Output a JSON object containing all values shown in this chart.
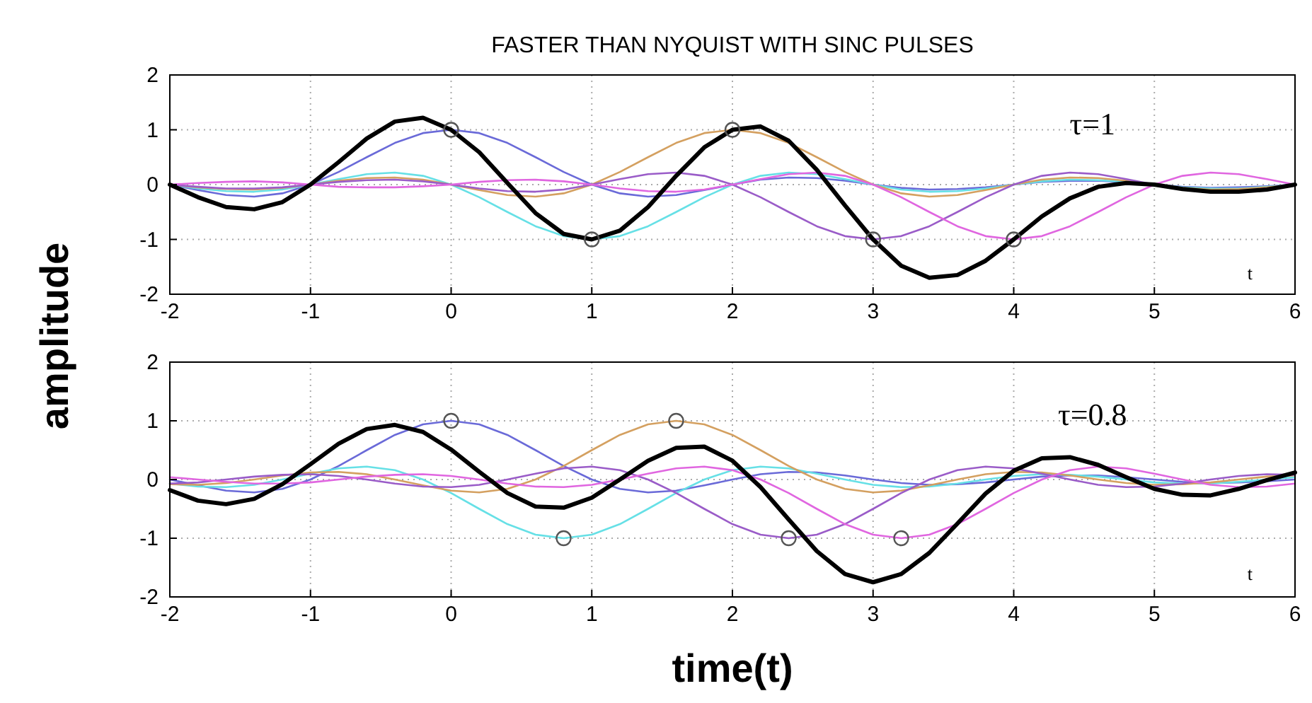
{
  "chart_data": [
    {
      "type": "line",
      "title": "FASTER THAN NYQUIST WITH SINC PULSES",
      "ylabel": "amplitude",
      "annotations": [
        "τ=1",
        "t"
      ],
      "x": [
        -2,
        -1.8,
        -1.6,
        -1.4,
        -1.2,
        -1,
        -0.8,
        -0.6,
        -0.4,
        -0.2,
        0,
        0.2,
        0.4,
        0.6,
        0.8,
        1,
        1.2,
        1.4,
        1.6,
        1.8,
        2,
        2.2,
        2.4,
        2.6,
        2.8,
        3,
        3.2,
        3.4,
        3.6,
        3.8,
        4,
        4.2,
        4.4,
        4.6,
        4.8,
        5,
        5.2,
        5.4,
        5.6,
        5.8,
        6
      ],
      "xlim": [
        -2,
        6
      ],
      "xticks": [
        -2,
        -1,
        0,
        1,
        2,
        3,
        4,
        5,
        6
      ],
      "ylim": [
        -2,
        2
      ],
      "yticks": [
        -2,
        -1,
        0,
        1,
        2
      ],
      "grid": true,
      "line_style": "solid",
      "series": [
        {
          "color": "#6a6ad8",
          "values": [
            0,
            -0.1,
            -0.19,
            -0.22,
            -0.16,
            0,
            0.23,
            0.5,
            0.76,
            0.94,
            1,
            0.94,
            0.76,
            0.5,
            0.23,
            0,
            -0.16,
            -0.22,
            -0.19,
            -0.1,
            0,
            0.09,
            0.13,
            0.12,
            0.07,
            0,
            -0.06,
            -0.09,
            -0.08,
            -0.05,
            0,
            0.05,
            0.07,
            0.07,
            0.04,
            0,
            -0.04,
            -0.06,
            -0.05,
            -0.03,
            0
          ]
        },
        {
          "color": "#66e0e6",
          "values": [
            0,
            -0.07,
            -0.12,
            -0.13,
            -0.09,
            0,
            0.1,
            0.19,
            0.22,
            0.16,
            0,
            -0.23,
            -0.5,
            -0.76,
            -0.94,
            -1,
            -0.94,
            -0.76,
            -0.5,
            -0.23,
            0,
            0.16,
            0.22,
            0.19,
            0.1,
            0,
            -0.09,
            -0.13,
            -0.12,
            -0.07,
            0,
            0.06,
            0.09,
            0.08,
            0.05,
            0,
            -0.05,
            -0.07,
            -0.07,
            -0.04,
            0
          ]
        },
        {
          "color": "#d4a060",
          "values": [
            0,
            -0.05,
            -0.08,
            -0.09,
            -0.06,
            0,
            0.07,
            0.12,
            0.13,
            0.09,
            0,
            -0.1,
            -0.19,
            -0.22,
            -0.16,
            0,
            0.23,
            0.5,
            0.76,
            0.94,
            1,
            0.94,
            0.76,
            0.5,
            0.23,
            0,
            -0.16,
            -0.22,
            -0.19,
            -0.1,
            0,
            0.09,
            0.13,
            0.12,
            0.07,
            0,
            -0.06,
            -0.09,
            -0.08,
            -0.05,
            0
          ]
        },
        {
          "color": "#9a5cc8",
          "values": [
            0,
            -0.04,
            -0.07,
            -0.07,
            -0.05,
            0,
            0.05,
            0.08,
            0.09,
            0.06,
            0,
            -0.07,
            -0.12,
            -0.13,
            -0.09,
            0,
            0.1,
            0.19,
            0.22,
            0.16,
            0,
            -0.23,
            -0.5,
            -0.76,
            -0.94,
            -1,
            -0.94,
            -0.76,
            -0.5,
            -0.23,
            0,
            0.16,
            0.22,
            0.19,
            0.1,
            0,
            -0.09,
            -0.13,
            -0.12,
            -0.07,
            0
          ]
        },
        {
          "color": "#e066e0",
          "values": [
            0,
            0.03,
            0.05,
            0.06,
            0.04,
            0,
            -0.04,
            -0.05,
            -0.05,
            -0.03,
            0,
            0.05,
            0.08,
            0.09,
            0.06,
            0,
            -0.07,
            -0.12,
            -0.13,
            -0.09,
            0,
            0.1,
            0.19,
            0.22,
            0.16,
            0,
            -0.23,
            -0.5,
            -0.76,
            -0.94,
            -1,
            -0.94,
            -0.76,
            -0.5,
            -0.23,
            0,
            0.16,
            0.22,
            0.19,
            0.1,
            0
          ]
        },
        {
          "color": "#000000",
          "values": [
            0,
            -0.23,
            -0.41,
            -0.45,
            -0.32,
            0,
            0.41,
            0.84,
            1.15,
            1.22,
            1,
            0.59,
            0.03,
            -0.52,
            -0.9,
            -1,
            -0.84,
            -0.41,
            0.16,
            0.68,
            1,
            1.06,
            0.8,
            0.27,
            -0.38,
            -1,
            -1.48,
            -1.7,
            -1.65,
            -1.39,
            -1,
            -0.58,
            -0.25,
            -0.04,
            0.03,
            0,
            -0.08,
            -0.13,
            -0.13,
            -0.09,
            0
          ]
        },
        {
          "type": "scatter",
          "marker": "circle",
          "color": "#555555",
          "x": [
            0,
            1,
            2,
            3,
            4
          ],
          "values": [
            1,
            -1,
            1,
            -1,
            -1
          ]
        }
      ]
    },
    {
      "type": "line",
      "xlabel": "time(t)",
      "annotations": [
        "τ=0.8",
        "t"
      ],
      "x": [
        -2,
        -1.8,
        -1.6,
        -1.4,
        -1.2,
        -1,
        -0.8,
        -0.6,
        -0.4,
        -0.2,
        0,
        0.2,
        0.4,
        0.6,
        0.8,
        1,
        1.2,
        1.4,
        1.6,
        1.8,
        2,
        2.2,
        2.4,
        2.6,
        2.8,
        3,
        3.2,
        3.4,
        3.6,
        3.8,
        4,
        4.2,
        4.4,
        4.6,
        4.8,
        5,
        5.2,
        5.4,
        5.6,
        5.8,
        6
      ],
      "xlim": [
        -2,
        6
      ],
      "xticks": [
        -2,
        -1,
        0,
        1,
        2,
        3,
        4,
        5,
        6
      ],
      "ylim": [
        -2,
        2
      ],
      "yticks": [
        -2,
        -1,
        0,
        1,
        2
      ],
      "grid": true,
      "line_style": "solid",
      "series": [
        {
          "color": "#6a6ad8",
          "values": [
            0,
            -0.1,
            -0.19,
            -0.22,
            -0.16,
            0,
            0.23,
            0.5,
            0.76,
            0.94,
            1,
            0.94,
            0.76,
            0.5,
            0.23,
            0,
            -0.16,
            -0.22,
            -0.19,
            -0.1,
            0,
            0.09,
            0.13,
            0.12,
            0.07,
            0,
            -0.06,
            -0.09,
            -0.08,
            -0.05,
            0,
            0.05,
            0.07,
            0.07,
            0.04,
            0,
            -0.04,
            -0.06,
            -0.05,
            -0.03,
            0
          ]
        },
        {
          "color": "#66e0e6",
          "values": [
            -0.07,
            -0.12,
            -0.13,
            -0.09,
            0,
            0.1,
            0.19,
            0.22,
            0.16,
            0,
            -0.23,
            -0.5,
            -0.76,
            -0.94,
            -1,
            -0.94,
            -0.76,
            -0.5,
            -0.23,
            0,
            0.16,
            0.22,
            0.19,
            0.1,
            0,
            -0.09,
            -0.13,
            -0.12,
            -0.07,
            0,
            0.06,
            0.09,
            0.08,
            0.05,
            0,
            -0.05,
            -0.07,
            -0.07,
            -0.04,
            0,
            0.04
          ]
        },
        {
          "color": "#d4a060",
          "values": [
            -0.08,
            -0.09,
            -0.06,
            0,
            0.07,
            0.12,
            0.13,
            0.09,
            0,
            -0.1,
            -0.19,
            -0.22,
            -0.16,
            0,
            0.23,
            0.5,
            0.76,
            0.94,
            1,
            0.94,
            0.76,
            0.5,
            0.23,
            0,
            -0.16,
            -0.22,
            -0.19,
            -0.1,
            0,
            0.09,
            0.13,
            0.12,
            0.07,
            0,
            -0.06,
            -0.09,
            -0.08,
            -0.05,
            0,
            0.05,
            0.07
          ]
        },
        {
          "color": "#9a5cc8",
          "values": [
            -0.07,
            -0.05,
            0,
            0.05,
            0.08,
            0.09,
            0.06,
            0,
            -0.07,
            -0.12,
            -0.13,
            -0.09,
            0,
            0.1,
            0.19,
            0.22,
            0.16,
            0,
            -0.23,
            -0.5,
            -0.76,
            -0.94,
            -1,
            -0.94,
            -0.76,
            -0.5,
            -0.23,
            0,
            0.16,
            0.22,
            0.19,
            0.1,
            0,
            -0.09,
            -0.13,
            -0.12,
            -0.07,
            0,
            0.06,
            0.09,
            0.08
          ]
        },
        {
          "color": "#e066e0",
          "values": [
            0.04,
            0,
            -0.04,
            -0.07,
            -0.07,
            -0.05,
            0,
            0.05,
            0.08,
            0.09,
            0.06,
            0,
            -0.07,
            -0.12,
            -0.13,
            -0.09,
            0,
            0.1,
            0.19,
            0.22,
            0.16,
            0,
            -0.23,
            -0.5,
            -0.76,
            -0.94,
            -1,
            -0.94,
            -0.76,
            -0.5,
            -0.23,
            0,
            0.16,
            0.22,
            0.19,
            0.1,
            0,
            -0.09,
            -0.13,
            -0.12,
            -0.07
          ]
        },
        {
          "color": "#000000",
          "values": [
            -0.18,
            -0.36,
            -0.42,
            -0.33,
            -0.08,
            0.26,
            0.61,
            0.86,
            0.93,
            0.81,
            0.51,
            0.13,
            -0.23,
            -0.46,
            -0.48,
            -0.31,
            0,
            0.32,
            0.54,
            0.56,
            0.32,
            -0.13,
            -0.68,
            -1.22,
            -1.61,
            -1.75,
            -1.61,
            -1.25,
            -0.75,
            -0.24,
            0.15,
            0.36,
            0.38,
            0.25,
            0.04,
            -0.16,
            -0.26,
            -0.27,
            -0.16,
            -0.01,
            0.12
          ]
        },
        {
          "type": "scatter",
          "marker": "circle",
          "color": "#555555",
          "x": [
            0,
            0.8,
            1.6,
            2.4,
            3.2
          ],
          "values": [
            1,
            -1,
            1,
            -1,
            -1
          ]
        }
      ]
    }
  ]
}
